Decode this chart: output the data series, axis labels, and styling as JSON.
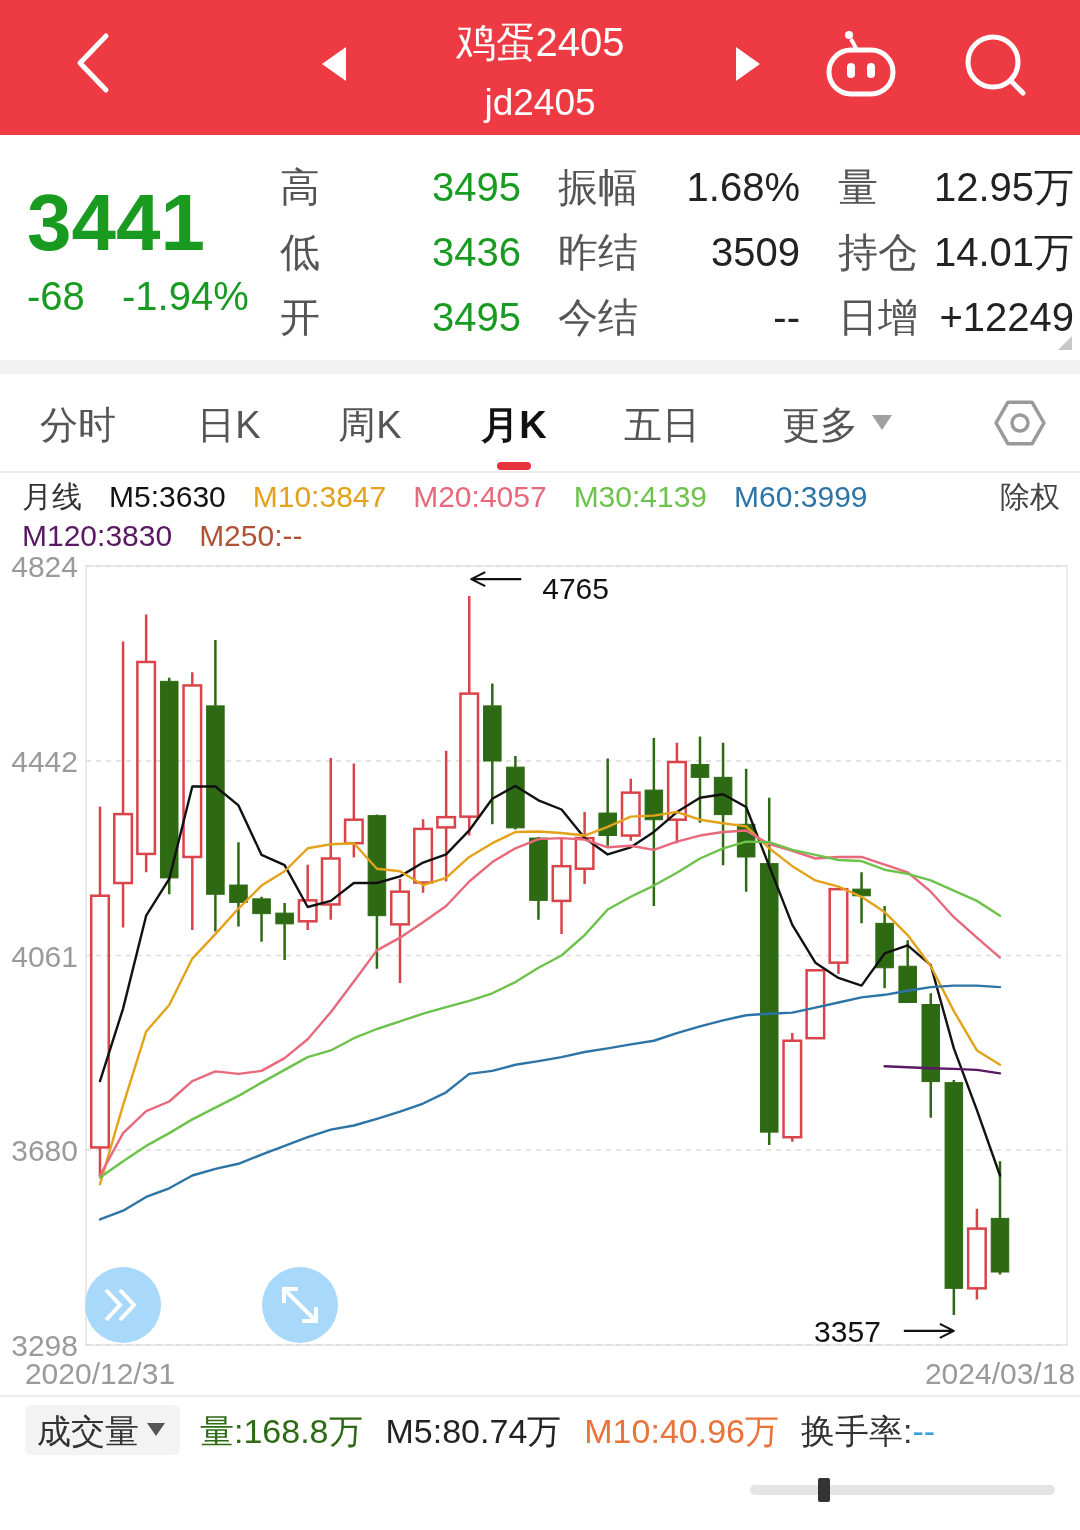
{
  "chart_data": [
    {
      "type": "other",
      "title": "鸡蛋2405",
      "subtitle": "jd2405",
      "annotations": [
        "3441",
        "-68",
        "-1.94%",
        "高",
        "3495",
        "振幅",
        "1.68%",
        "量",
        "12.95万",
        "低",
        "3436",
        "昨结",
        "3509",
        "持仓",
        "14.01万",
        "开",
        "3495",
        "今结",
        "--",
        "日增",
        "+12249",
        "分时",
        "日K",
        "周K",
        "月K",
        "五日",
        "更多"
      ]
    },
    {
      "type": "candlestick",
      "legend": "top",
      "legend_title": "月线",
      "grid": "y",
      "ylim": [
        3298,
        4824
      ],
      "yticks": [
        4824,
        4442,
        4061,
        3680,
        3298
      ],
      "categories": [
        "2020/12/31",
        null,
        null,
        null,
        null,
        null,
        null,
        null,
        null,
        null,
        null,
        null,
        null,
        null,
        null,
        null,
        null,
        null,
        null,
        null,
        null,
        null,
        null,
        null,
        null,
        null,
        null,
        null,
        null,
        null,
        null,
        null,
        null,
        null,
        null,
        null,
        null,
        null,
        null,
        "2024/03/18"
      ],
      "ohlc": [
        [
          3685,
          4353,
          3628,
          4178
        ],
        [
          4203,
          4676,
          4116,
          4338
        ],
        [
          4260,
          4729,
          4224,
          4636
        ],
        [
          4598,
          4605,
          4181,
          4213
        ],
        [
          4254,
          4616,
          4111,
          4590
        ],
        [
          4550,
          4679,
          4108,
          4181
        ],
        [
          4199,
          4283,
          4118,
          4165
        ],
        [
          4172,
          4176,
          4088,
          4143
        ],
        [
          4144,
          4164,
          4052,
          4123
        ],
        [
          4128,
          4239,
          4111,
          4169
        ],
        [
          4161,
          4448,
          4131,
          4251
        ],
        [
          4281,
          4437,
          4253,
          4327
        ],
        [
          4335,
          4337,
          4035,
          4139
        ],
        [
          4122,
          4211,
          4007,
          4186
        ],
        [
          4204,
          4328,
          4184,
          4309
        ],
        [
          4312,
          4462,
          4206,
          4332
        ],
        [
          4333,
          4765,
          4296,
          4574
        ],
        [
          4550,
          4594,
          4318,
          4442
        ],
        [
          4430,
          4452,
          4308,
          4311
        ],
        [
          4291,
          4293,
          4131,
          4169
        ],
        [
          4168,
          4291,
          4103,
          4236
        ],
        [
          4231,
          4342,
          4201,
          4291
        ],
        [
          4340,
          4447,
          4276,
          4296
        ],
        [
          4296,
          4407,
          4286,
          4380
        ],
        [
          4385,
          4487,
          4158,
          4327
        ],
        [
          4327,
          4478,
          4281,
          4440
        ],
        [
          4435,
          4490,
          4321,
          4410
        ],
        [
          4410,
          4478,
          4238,
          4337
        ],
        [
          4318,
          4427,
          4186,
          4254
        ],
        [
          4241,
          4370,
          3690,
          3715
        ],
        [
          3705,
          3909,
          3696,
          3894
        ],
        [
          3899,
          4032,
          3899,
          4032
        ],
        [
          4047,
          4191,
          4025,
          4191
        ],
        [
          4191,
          4224,
          4124,
          4178
        ],
        [
          4124,
          4158,
          3997,
          4037
        ],
        [
          4040,
          4091,
          3969,
          3969
        ],
        [
          3965,
          3987,
          3743,
          3814
        ],
        [
          3812,
          3817,
          3357,
          3409
        ],
        [
          3409,
          3565,
          3387,
          3526
        ],
        [
          3546,
          3658,
          3436,
          3441
        ]
      ],
      "colors": [
        "#d9434a",
        "#d9434a",
        "#d9434a",
        "#2d6a13",
        "#d9434a",
        "#2d6a13",
        "#2d6a13",
        "#2d6a13",
        "#2d6a13",
        "#d9434a",
        "#d9434a",
        "#d9434a",
        "#2d6a13",
        "#d9434a",
        "#d9434a",
        "#d9434a",
        "#d9434a",
        "#2d6a13",
        "#2d6a13",
        "#2d6a13",
        "#d9434a",
        "#d9434a",
        "#2d6a13",
        "#d9434a",
        "#2d6a13",
        "#d9434a",
        "#2d6a13",
        "#2d6a13",
        "#2d6a13",
        "#2d6a13",
        "#d9434a",
        "#d9434a",
        "#d9434a",
        "#2d6a13",
        "#2d6a13",
        "#2d6a13",
        "#2d6a13",
        "#2d6a13",
        "#d9434a",
        "#2d6a13"
      ],
      "series": [
        {
          "type": "line",
          "name": "M5:3630",
          "color": "#111111",
          "values": [
            3815,
            3957,
            4139,
            4211,
            4392,
            4392,
            4355,
            4258,
            4238,
            4156,
            4168,
            4203,
            4203,
            4216,
            4243,
            4259,
            4306,
            4368,
            4393,
            4365,
            4347,
            4291,
            4259,
            4273,
            4303,
            4342,
            4370,
            4377,
            4352,
            4236,
            4121,
            4047,
            4017,
            4002,
            4065,
            4081,
            4042,
            3879,
            3758,
            3630
          ]
        },
        {
          "type": "line",
          "name": "M10:3847",
          "color": "#e3a21a",
          "values": [
            3613,
            3768,
            3912,
            3964,
            4055,
            4103,
            4153,
            4198,
            4226,
            4271,
            4279,
            4281,
            4231,
            4226,
            4199,
            4213,
            4254,
            4281,
            4303,
            4304,
            4301,
            4296,
            4313,
            4333,
            4335,
            4342,
            4327,
            4320,
            4314,
            4271,
            4236,
            4208,
            4196,
            4176,
            4146,
            4101,
            4040,
            3952,
            3875,
            3847
          ]
        },
        {
          "type": "line",
          "name": "M20:4057",
          "color": "#e8687c",
          "values": [
            3630,
            3713,
            3756,
            3775,
            3815,
            3834,
            3829,
            3835,
            3860,
            3897,
            3950,
            4010,
            4071,
            4096,
            4126,
            4158,
            4206,
            4244,
            4271,
            4289,
            4291,
            4288,
            4273,
            4276,
            4268,
            4284,
            4296,
            4303,
            4306,
            4279,
            4266,
            4251,
            4254,
            4254,
            4239,
            4224,
            4186,
            4136,
            4096,
            4057
          ]
        },
        {
          "type": "line",
          "name": "M30:4139",
          "color": "#6cc24a",
          "values": [
            3626,
            3658,
            3688,
            3713,
            3740,
            3763,
            3786,
            3812,
            3837,
            3862,
            3875,
            3899,
            3917,
            3932,
            3947,
            3960,
            3972,
            3987,
            4009,
            4037,
            4061,
            4101,
            4151,
            4176,
            4198,
            4223,
            4251,
            4271,
            4284,
            4283,
            4268,
            4258,
            4248,
            4246,
            4229,
            4221,
            4208,
            4188,
            4168,
            4139
          ]
        },
        {
          "type": "line",
          "name": "M60:3999",
          "color": "#2c74a6",
          "values": [
            3544,
            3561,
            3588,
            3605,
            3630,
            3643,
            3653,
            3671,
            3688,
            3705,
            3720,
            3728,
            3741,
            3755,
            3771,
            3793,
            3829,
            3835,
            3847,
            3854,
            3862,
            3872,
            3879,
            3887,
            3894,
            3909,
            3922,
            3934,
            3944,
            3947,
            3949,
            3959,
            3969,
            3979,
            3984,
            3992,
            3999,
            4002,
            4002,
            3999
          ]
        },
        {
          "type": "line",
          "name": "M120:3830",
          "color": "#5b1864",
          "values": [
            null,
            null,
            null,
            null,
            null,
            null,
            null,
            null,
            null,
            null,
            null,
            null,
            null,
            null,
            null,
            null,
            null,
            null,
            null,
            null,
            null,
            null,
            null,
            null,
            null,
            null,
            null,
            null,
            null,
            null,
            null,
            null,
            null,
            null,
            3844,
            3842,
            3840,
            3839,
            3837,
            3830
          ]
        },
        {
          "type": "line",
          "name": "M250:--",
          "color": "#b05236",
          "values": [
            null,
            null,
            null,
            null,
            null,
            null,
            null,
            null,
            null,
            null,
            null,
            null,
            null,
            null,
            null,
            null,
            null,
            null,
            null,
            null,
            null,
            null,
            null,
            null,
            null,
            null,
            null,
            null,
            null,
            null,
            null,
            null,
            null,
            null,
            null,
            null,
            null,
            null,
            null,
            null
          ]
        }
      ],
      "annotations": [
        "除权",
        "4765",
        "3357"
      ]
    },
    {
      "type": "other",
      "title": "成交量",
      "annotations": [
        "量:168.8万",
        "M5:80.74万",
        "M10:40.96万",
        "换手率:",
        "--"
      ],
      "colors": [
        "#2d6a13",
        "#222222",
        "#e8743b",
        "#333333",
        "#3a9de0"
      ]
    }
  ]
}
